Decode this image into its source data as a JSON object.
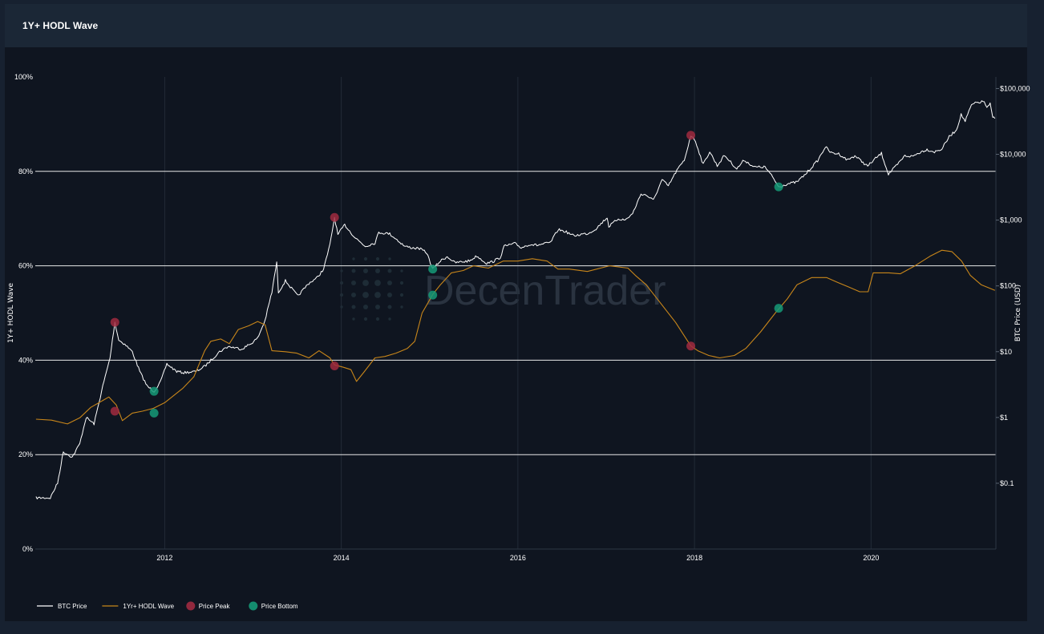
{
  "header": {
    "title": "1Y+ HODL Wave"
  },
  "watermark": {
    "text": "DecenTrader"
  },
  "colors": {
    "background": "#0f1520",
    "header": "#1b2736",
    "btc_price": "#ffffff",
    "hodl_wave": "#c8861a",
    "price_peak": "#a02a40",
    "price_bottom": "#159a78",
    "grid_major": "#e8e8e8",
    "grid_minor": "#222b37"
  },
  "chart_data": {
    "type": "line",
    "title": "1Y+ HODL Wave",
    "x_range": [
      "2010-07-15",
      "2021-06-01"
    ],
    "x_ticks": [
      {
        "year": 2012,
        "label": "2012"
      },
      {
        "year": 2014,
        "label": "2014"
      },
      {
        "year": 2016,
        "label": "2016"
      },
      {
        "year": 2018,
        "label": "2018"
      },
      {
        "year": 2020,
        "label": "2020"
      }
    ],
    "y_left": {
      "label": "1Y+ HODL Wave",
      "range": [
        0,
        100
      ],
      "ticks": [
        {
          "value": 0,
          "label": "0%"
        },
        {
          "value": 20,
          "label": "20%"
        },
        {
          "value": 40,
          "label": "40%"
        },
        {
          "value": 60,
          "label": "60%"
        },
        {
          "value": 80,
          "label": "80%"
        },
        {
          "value": 100,
          "label": "100%"
        }
      ]
    },
    "y_right": {
      "label": "BTC Price (USD)",
      "scale": "log",
      "range": [
        0.01,
        150000
      ],
      "ticks": [
        {
          "value": 0.1,
          "label": "$0.1"
        },
        {
          "value": 1,
          "label": "$1"
        },
        {
          "value": 10,
          "label": "$10"
        },
        {
          "value": 100,
          "label": "$100"
        },
        {
          "value": 1000,
          "label": "$1,000"
        },
        {
          "value": 10000,
          "label": "$10,000"
        },
        {
          "value": 100000,
          "label": "$100,000"
        }
      ]
    },
    "grid": true,
    "legend_position": "bottom-left",
    "legend": [
      {
        "label": "BTC Price",
        "kind": "line",
        "color": "#ffffff"
      },
      {
        "label": "1Yr+ HODL Wave",
        "kind": "line",
        "color": "#c8861a"
      },
      {
        "label": "Price Peak",
        "kind": "marker",
        "color": "#a02a40"
      },
      {
        "label": "Price Bottom",
        "kind": "marker",
        "color": "#159a78"
      }
    ],
    "series": [
      {
        "name": "BTC Price",
        "axis": "right",
        "color": "#ffffff",
        "points": [
          [
            "2010-07-18",
            0.06
          ],
          [
            "2010-09-15",
            0.06
          ],
          [
            "2010-10-15",
            0.1
          ],
          [
            "2010-11-08",
            0.3
          ],
          [
            "2010-12-15",
            0.25
          ],
          [
            "2011-01-15",
            0.4
          ],
          [
            "2011-02-10",
            1.0
          ],
          [
            "2011-03-15",
            0.8
          ],
          [
            "2011-04-20",
            3
          ],
          [
            "2011-05-20",
            8
          ],
          [
            "2011-06-09",
            28
          ],
          [
            "2011-06-25",
            15
          ],
          [
            "2011-07-20",
            13
          ],
          [
            "2011-08-20",
            10
          ],
          [
            "2011-09-20",
            5
          ],
          [
            "2011-10-20",
            3
          ],
          [
            "2011-11-18",
            2.5
          ],
          [
            "2011-12-15",
            3.5
          ],
          [
            "2012-01-10",
            6.5
          ],
          [
            "2012-02-20",
            5
          ],
          [
            "2012-03-20",
            4.8
          ],
          [
            "2012-05-10",
            5
          ],
          [
            "2012-06-15",
            6
          ],
          [
            "2012-08-15",
            10
          ],
          [
            "2012-09-20",
            12
          ],
          [
            "2012-11-15",
            11
          ],
          [
            "2012-12-20",
            13
          ],
          [
            "2013-01-20",
            16
          ],
          [
            "2013-02-20",
            30
          ],
          [
            "2013-03-20",
            80
          ],
          [
            "2013-04-09",
            230
          ],
          [
            "2013-04-16",
            80
          ],
          [
            "2013-05-15",
            120
          ],
          [
            "2013-07-05",
            70
          ],
          [
            "2013-08-20",
            110
          ],
          [
            "2013-09-20",
            130
          ],
          [
            "2013-10-20",
            180
          ],
          [
            "2013-11-15",
            420
          ],
          [
            "2013-12-04",
            1100
          ],
          [
            "2013-12-18",
            600
          ],
          [
            "2014-01-15",
            850
          ],
          [
            "2014-02-25",
            550
          ],
          [
            "2014-04-10",
            400
          ],
          [
            "2014-05-20",
            450
          ],
          [
            "2014-06-05",
            650
          ],
          [
            "2014-07-20",
            620
          ],
          [
            "2014-08-20",
            500
          ],
          [
            "2014-09-20",
            400
          ],
          [
            "2014-10-20",
            380
          ],
          [
            "2014-11-20",
            370
          ],
          [
            "2014-12-20",
            320
          ],
          [
            "2015-01-14",
            180
          ],
          [
            "2015-02-15",
            240
          ],
          [
            "2015-03-15",
            280
          ],
          [
            "2015-04-15",
            225
          ],
          [
            "2015-06-15",
            240
          ],
          [
            "2015-07-15",
            285
          ],
          [
            "2015-08-25",
            220
          ],
          [
            "2015-09-20",
            235
          ],
          [
            "2015-10-20",
            270
          ],
          [
            "2015-11-05",
            400
          ],
          [
            "2015-12-20",
            440
          ],
          [
            "2016-01-15",
            380
          ],
          [
            "2016-02-20",
            430
          ],
          [
            "2016-03-20",
            415
          ],
          [
            "2016-05-15",
            455
          ],
          [
            "2016-06-16",
            720
          ],
          [
            "2016-07-20",
            660
          ],
          [
            "2016-08-20",
            575
          ],
          [
            "2016-09-20",
            610
          ],
          [
            "2016-10-20",
            630
          ],
          [
            "2016-11-20",
            740
          ],
          [
            "2017-01-05",
            1100
          ],
          [
            "2017-01-12",
            800
          ],
          [
            "2017-02-20",
            1050
          ],
          [
            "2017-03-20",
            1000
          ],
          [
            "2017-04-20",
            1250
          ],
          [
            "2017-05-25",
            2500
          ],
          [
            "2017-06-15",
            2400
          ],
          [
            "2017-07-15",
            2000
          ],
          [
            "2017-08-20",
            4100
          ],
          [
            "2017-09-15",
            3300
          ],
          [
            "2017-10-20",
            5700
          ],
          [
            "2017-11-20",
            8100
          ],
          [
            "2017-12-17",
            19500
          ],
          [
            "2018-01-05",
            16000
          ],
          [
            "2018-02-06",
            7000
          ],
          [
            "2018-03-05",
            11000
          ],
          [
            "2018-04-05",
            6700
          ],
          [
            "2018-05-05",
            9700
          ],
          [
            "2018-06-25",
            6000
          ],
          [
            "2018-07-25",
            8200
          ],
          [
            "2018-09-05",
            6400
          ],
          [
            "2018-10-20",
            6400
          ],
          [
            "2018-11-20",
            4500
          ],
          [
            "2018-12-15",
            3200
          ],
          [
            "2019-01-20",
            3550
          ],
          [
            "2019-03-01",
            3800
          ],
          [
            "2019-04-05",
            5000
          ],
          [
            "2019-05-25",
            8000
          ],
          [
            "2019-06-26",
            13000
          ],
          [
            "2019-07-20",
            10500
          ],
          [
            "2019-08-20",
            10200
          ],
          [
            "2019-09-25",
            8200
          ],
          [
            "2019-10-26",
            9500
          ],
          [
            "2019-12-18",
            6600
          ],
          [
            "2020-01-20",
            8700
          ],
          [
            "2020-02-13",
            10300
          ],
          [
            "2020-03-13",
            5000
          ],
          [
            "2020-04-20",
            7000
          ],
          [
            "2020-05-20",
            9500
          ],
          [
            "2020-06-20",
            9300
          ],
          [
            "2020-07-28",
            11000
          ],
          [
            "2020-08-20",
            11800
          ],
          [
            "2020-09-20",
            10900
          ],
          [
            "2020-10-20",
            12000
          ],
          [
            "2020-11-20",
            18500
          ],
          [
            "2020-12-20",
            23500
          ],
          [
            "2021-01-08",
            40000
          ],
          [
            "2021-01-25",
            32000
          ],
          [
            "2021-02-20",
            56000
          ],
          [
            "2021-03-13",
            61000
          ],
          [
            "2021-04-14",
            63500
          ],
          [
            "2021-04-25",
            50000
          ],
          [
            "2021-05-08",
            58000
          ],
          [
            "2021-05-19",
            37000
          ],
          [
            "2021-05-28",
            35000
          ]
        ]
      },
      {
        "name": "1Yr+ HODL Wave",
        "axis": "left",
        "color": "#c8861a",
        "points": [
          [
            "2010-07-18",
            27.5
          ],
          [
            "2010-09-20",
            27.3
          ],
          [
            "2010-11-25",
            26.5
          ],
          [
            "2011-01-15",
            27.8
          ],
          [
            "2011-03-01",
            30
          ],
          [
            "2011-05-15",
            32.2
          ],
          [
            "2011-06-15",
            30.5
          ],
          [
            "2011-07-10",
            27.2
          ],
          [
            "2011-08-20",
            28.8
          ],
          [
            "2011-10-01",
            29.2
          ],
          [
            "2011-11-15",
            29.8
          ],
          [
            "2012-01-01",
            31
          ],
          [
            "2012-03-15",
            34
          ],
          [
            "2012-05-01",
            36.5
          ],
          [
            "2012-06-15",
            42
          ],
          [
            "2012-07-10",
            44
          ],
          [
            "2012-08-20",
            44.5
          ],
          [
            "2012-09-25",
            43.5
          ],
          [
            "2012-11-01",
            46.5
          ],
          [
            "2012-12-15",
            47.3
          ],
          [
            "2013-01-20",
            48.2
          ],
          [
            "2013-02-20",
            47.5
          ],
          [
            "2013-03-20",
            42
          ],
          [
            "2013-05-15",
            41.8
          ],
          [
            "2013-07-01",
            41.5
          ],
          [
            "2013-08-20",
            40.5
          ],
          [
            "2013-10-01",
            42
          ],
          [
            "2013-11-15",
            40.5
          ],
          [
            "2013-12-04",
            39
          ],
          [
            "2014-01-10",
            38.5
          ],
          [
            "2014-02-10",
            38
          ],
          [
            "2014-03-05",
            35.5
          ],
          [
            "2014-04-05",
            37.5
          ],
          [
            "2014-05-20",
            40.5
          ],
          [
            "2014-07-01",
            40.8
          ],
          [
            "2014-08-15",
            41.5
          ],
          [
            "2014-10-01",
            42.5
          ],
          [
            "2014-11-01",
            44
          ],
          [
            "2014-12-01",
            50
          ],
          [
            "2015-01-15",
            54
          ],
          [
            "2015-02-15",
            56
          ],
          [
            "2015-04-01",
            58.5
          ],
          [
            "2015-05-20",
            59
          ],
          [
            "2015-07-01",
            60
          ],
          [
            "2015-09-01",
            59.5
          ],
          [
            "2015-11-01",
            61
          ],
          [
            "2016-01-01",
            61
          ],
          [
            "2016-03-01",
            61.5
          ],
          [
            "2016-05-01",
            61
          ],
          [
            "2016-06-15",
            59.3
          ],
          [
            "2016-08-01",
            59.3
          ],
          [
            "2016-10-15",
            58.8
          ],
          [
            "2017-01-15",
            60
          ],
          [
            "2017-04-01",
            59.5
          ],
          [
            "2017-05-01",
            58
          ],
          [
            "2017-06-15",
            56
          ],
          [
            "2017-08-15",
            52
          ],
          [
            "2017-10-15",
            48
          ],
          [
            "2017-12-17",
            43
          ],
          [
            "2018-01-15",
            42
          ],
          [
            "2018-03-01",
            41
          ],
          [
            "2018-04-15",
            40.5
          ],
          [
            "2018-06-15",
            41
          ],
          [
            "2018-08-01",
            42.5
          ],
          [
            "2018-10-01",
            46
          ],
          [
            "2018-12-01",
            50
          ],
          [
            "2019-01-20",
            53
          ],
          [
            "2019-03-01",
            56
          ],
          [
            "2019-05-01",
            57.5
          ],
          [
            "2019-07-01",
            57.5
          ],
          [
            "2019-08-15",
            56.5
          ],
          [
            "2019-10-01",
            55.5
          ],
          [
            "2019-11-15",
            54.5
          ],
          [
            "2019-12-20",
            54.5
          ],
          [
            "2020-01-10",
            58.5
          ],
          [
            "2020-03-15",
            58.5
          ],
          [
            "2020-05-01",
            58.3
          ],
          [
            "2020-07-01",
            60
          ],
          [
            "2020-09-01",
            62
          ],
          [
            "2020-10-20",
            63.3
          ],
          [
            "2020-12-01",
            63
          ],
          [
            "2021-01-10",
            61
          ],
          [
            "2021-02-15",
            58
          ],
          [
            "2021-04-01",
            56
          ],
          [
            "2021-05-28",
            54.8
          ]
        ]
      }
    ],
    "peaks": [
      {
        "date": "2011-06-09",
        "price": 28,
        "hodl": 29.2
      },
      {
        "date": "2013-12-04",
        "price": 1100,
        "hodl": 38.8
      },
      {
        "date": "2017-12-17",
        "price": 19500,
        "hodl": 43
      }
    ],
    "bottoms": [
      {
        "date": "2011-11-18",
        "price": 2.5,
        "hodl": 28.8
      },
      {
        "date": "2015-01-14",
        "price": 180,
        "hodl": 53.8
      },
      {
        "date": "2018-12-15",
        "price": 3200,
        "hodl": 51
      }
    ]
  }
}
